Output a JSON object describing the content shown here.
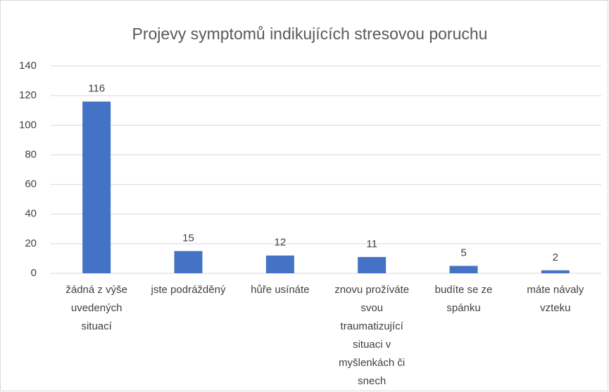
{
  "chart_data": {
    "type": "bar",
    "title": "Projevy symptomů indikujících stresovou poruchu",
    "categories": [
      "žádná z výše uvedených situací",
      "jste podrážděný",
      "hůře usínáte",
      "znovu prožíváte svou traumatizující situaci v myšlenkách či snech",
      "budíte se ze spánku",
      "máte návaly vzteku"
    ],
    "values": [
      116,
      15,
      12,
      11,
      5,
      2
    ],
    "color": "#4472c4",
    "ylim": [
      0,
      140
    ],
    "yticks": [
      0,
      20,
      40,
      60,
      80,
      100,
      120,
      140
    ],
    "grid": true,
    "data_labels": true
  }
}
